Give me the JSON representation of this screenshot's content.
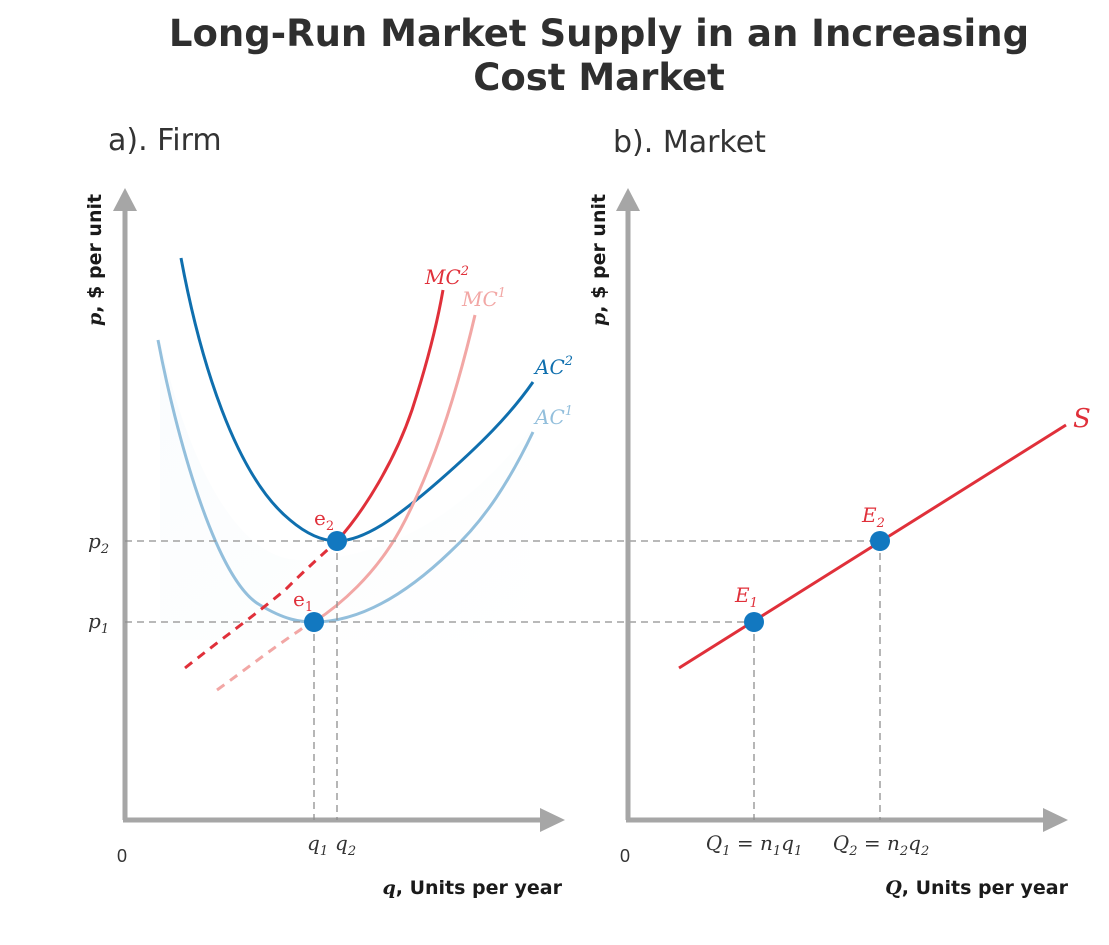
{
  "title_line1": "Long-Run Market Supply in an Increasing",
  "title_line2": "Cost Market",
  "panel_a": {
    "title": "a). Firm",
    "y_axis_label_var": "p",
    "y_axis_label_rest": ", $ per unit",
    "x_axis_label_var": "q",
    "x_axis_label_rest": ", Units per year",
    "origin": "0",
    "price_ticks": [
      "p2",
      "p1"
    ],
    "quantity_ticks": [
      "q1",
      "q2"
    ],
    "curves": [
      "MC2",
      "MC1",
      "AC2",
      "AC1"
    ],
    "points": [
      "e2",
      "e1"
    ]
  },
  "panel_b": {
    "title": "b). Market",
    "y_axis_label_var": "p",
    "y_axis_label_rest": ", $ per unit",
    "x_axis_label_var": "Q",
    "x_axis_label_rest": ", Units per year",
    "origin": "0",
    "supply_label": "S",
    "points": [
      "E2",
      "E1"
    ],
    "quantity_ticks": [
      "Q1 = n1q1",
      "Q2 = n2q2"
    ]
  },
  "colors": {
    "axis": "#a6a6a6",
    "mc2": "#e0303a",
    "mc1": "#f2a7a5",
    "ac2": "#0f6fae",
    "ac1": "#93bfdc",
    "supply": "#e0303a",
    "point": "#1278c0",
    "guide": "#8f8f8f"
  }
}
